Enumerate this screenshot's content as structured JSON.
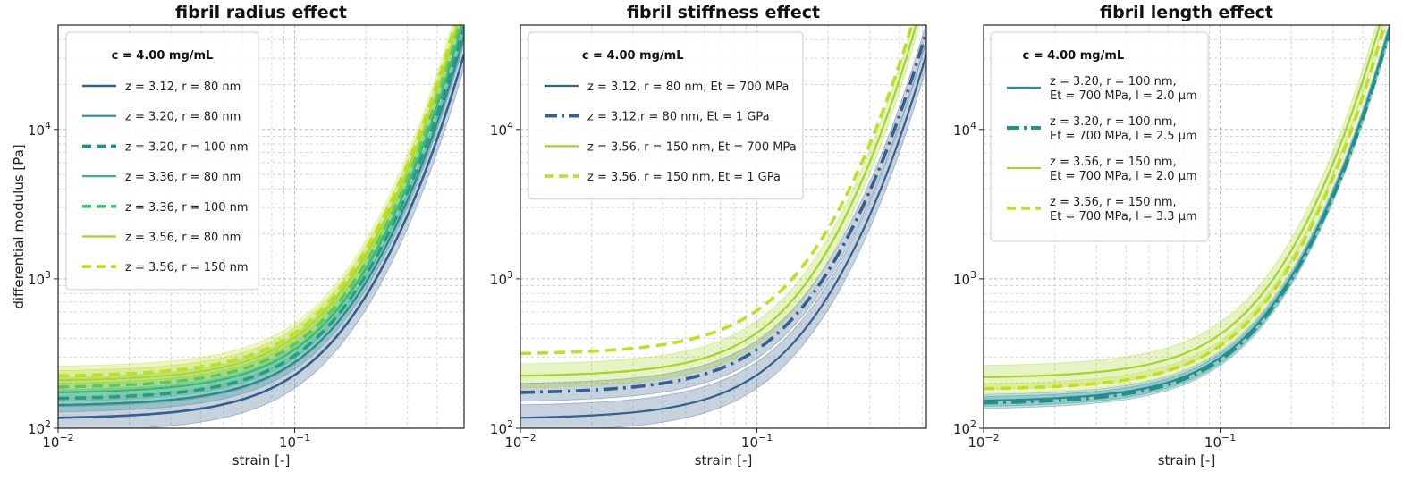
{
  "chart_data": [
    {
      "type": "line",
      "title": "fibril radius effect",
      "xlabel": "strain [-]",
      "ylabel": "differential modulus [Pa]",
      "xscale": "log",
      "yscale": "log",
      "xlim": [
        0.01,
        0.52
      ],
      "ylim": [
        100,
        50000
      ],
      "xticks": [
        {
          "value": 0.01,
          "base": "10",
          "exp": "−2"
        },
        {
          "value": 0.1,
          "base": "10",
          "exp": "−1"
        }
      ],
      "yticks": [
        {
          "value": 100,
          "base": "10",
          "exp": "2"
        },
        {
          "value": 1000,
          "base": "10",
          "exp": "3"
        },
        {
          "value": 10000,
          "base": "10",
          "exp": "4"
        }
      ],
      "grid": true,
      "legend_title": "c = 4.00 mg/mL",
      "legend_position": "upper-left",
      "series": [
        {
          "name": "z = 3.12, r = 80 nm",
          "lines": [
            "z = 3.12, r = 80 nm"
          ],
          "color": "#355f8d",
          "style": "solid",
          "width": 2.6,
          "g0": 115,
          "band": 0.22,
          "growth": 4.55
        },
        {
          "name": "z = 3.20, r = 80 nm",
          "lines": [
            "z = 3.20, r = 80 nm"
          ],
          "color": "#2a8c8c",
          "style": "solid",
          "width": 2.2,
          "g0": 140,
          "band": 0.12,
          "growth": 4.75
        },
        {
          "name": "z = 3.20, r = 100 nm",
          "lines": [
            "z = 3.20, r = 100 nm"
          ],
          "color": "#22908b",
          "style": "dashed",
          "width": 3.6,
          "g0": 155,
          "band": 0.14,
          "growth": 4.85
        },
        {
          "name": "z = 3.36, r = 80 nm",
          "lines": [
            "z = 3.36, r = 80 nm"
          ],
          "color": "#35b779",
          "style": "solid",
          "width": 2.2,
          "g0": 170,
          "band": 0.15,
          "growth": 4.95
        },
        {
          "name": "z = 3.36, r = 100 nm",
          "lines": [
            "z = 3.36, r = 100 nm"
          ],
          "color": "#44bf70",
          "style": "dashed",
          "width": 3.6,
          "g0": 185,
          "band": 0.16,
          "growth": 5.05
        },
        {
          "name": "z = 3.56, r = 80 nm",
          "lines": [
            "z = 3.56, r = 80 nm"
          ],
          "color": "#a5d42a",
          "style": "solid",
          "width": 2.2,
          "g0": 205,
          "band": 0.16,
          "growth": 5.15
        },
        {
          "name": "z = 3.56,  r = 150 nm",
          "lines": [
            "z = 3.56,  r = 150 nm"
          ],
          "color": "#bddf26",
          "style": "dashed",
          "width": 3.6,
          "g0": 220,
          "band": 0.16,
          "growth": 5.3
        }
      ]
    },
    {
      "type": "line",
      "title": "fibril stiffness effect",
      "xlabel": "strain [-]",
      "ylabel": "",
      "xscale": "log",
      "yscale": "log",
      "xlim": [
        0.01,
        0.52
      ],
      "ylim": [
        100,
        50000
      ],
      "xticks": [
        {
          "value": 0.01,
          "base": "10",
          "exp": "−2"
        },
        {
          "value": 0.1,
          "base": "10",
          "exp": "−1"
        }
      ],
      "yticks": [
        {
          "value": 100,
          "base": "10",
          "exp": "2"
        },
        {
          "value": 1000,
          "base": "10",
          "exp": "3"
        },
        {
          "value": 10000,
          "base": "10",
          "exp": "4"
        }
      ],
      "grid": true,
      "legend_title": "c = 4.00 mg/mL",
      "legend_position": "upper-left",
      "series": [
        {
          "name": "z = 3.12, r = 80 nm, Et = 700 MPa",
          "lines": [
            "z = 3.12, r = 80 nm, Et = 700 MPa"
          ],
          "color": "#355f8d",
          "style": "solid",
          "width": 2.2,
          "g0": 115,
          "band": 0.22,
          "growth": 4.55
        },
        {
          "name": "z = 3.12,r = 80 nm, Et = 1 GPa",
          "lines": [
            "z = 3.12,r = 80 nm, Et = 1 GPa"
          ],
          "color": "#355f8d",
          "style": "dashdot",
          "width": 3.6,
          "g0": 170,
          "band": 0.15,
          "growth": 4.45
        },
        {
          "name": "z = 3.56, r = 150 nm, Et = 700 MPa",
          "lines": [
            "z = 3.56, r = 150 nm, Et = 700 MPa"
          ],
          "color": "#a5d42a",
          "style": "solid",
          "width": 2.2,
          "g0": 220,
          "band": 0.2,
          "growth": 5.45
        },
        {
          "name": "z = 3.56, r = 150 nm, Et = 1 GPa",
          "lines": [
            "z = 3.56, r = 150 nm, Et = 1 GPa"
          ],
          "color": "#bddf26",
          "style": "dashed",
          "width": 3.6,
          "g0": 310,
          "band": 0.0,
          "growth": 5.1
        }
      ]
    },
    {
      "type": "line",
      "title": "fibril length effect",
      "xlabel": "strain [-]",
      "ylabel": "",
      "xscale": "log",
      "yscale": "log",
      "xlim": [
        0.01,
        0.52
      ],
      "ylim": [
        100,
        50000
      ],
      "xticks": [
        {
          "value": 0.01,
          "base": "10",
          "exp": "−2"
        },
        {
          "value": 0.1,
          "base": "10",
          "exp": "−1"
        }
      ],
      "yticks": [
        {
          "value": 100,
          "base": "10",
          "exp": "2"
        },
        {
          "value": 1000,
          "base": "10",
          "exp": "3"
        },
        {
          "value": 10000,
          "base": "10",
          "exp": "4"
        }
      ],
      "grid": true,
      "legend_title": "c = 4.00 mg/mL",
      "legend_position": "upper-left",
      "series": [
        {
          "name": "z = 3.20, r = 100 nm, Et = 700 MPa, l = 2.0 µm",
          "lines": [
            "z = 3.20, r = 100 nm,",
            "Et = 700 MPa, l = 2.0 µm"
          ],
          "color": "#2a8c8c",
          "style": "solid",
          "width": 2.2,
          "g0": 150,
          "band": 0.1,
          "growth": 4.9
        },
        {
          "name": "z = 3.20, r = 100 nm, Et = 700 MPa, l = 2.5 µm",
          "lines": [
            "z = 3.20, r = 100 nm,",
            "Et = 700 MPa, l = 2.5 µm"
          ],
          "color": "#22908b",
          "style": "dashdot",
          "width": 4.0,
          "g0": 145,
          "band": 0.1,
          "growth": 4.85
        },
        {
          "name": "z = 3.56, r = 150 nm, Et = 700 MPa, l = 2.0 µm",
          "lines": [
            "z = 3.56, r = 150 nm,",
            "Et = 700 MPa, l = 2.0 µm"
          ],
          "color": "#a5d42a",
          "style": "solid",
          "width": 2.2,
          "g0": 215,
          "band": 0.2,
          "growth": 5.45
        },
        {
          "name": "z = 3.56,  r = 150 nm, Et = 700 MPa, l = 3.3 µm",
          "lines": [
            "z = 3.56,  r = 150 nm,",
            "Et = 700 MPa, l = 3.3 µm"
          ],
          "color": "#bddf26",
          "style": "dashed",
          "width": 3.6,
          "g0": 180,
          "band": 0.08,
          "growth": 5.2
        }
      ]
    }
  ]
}
